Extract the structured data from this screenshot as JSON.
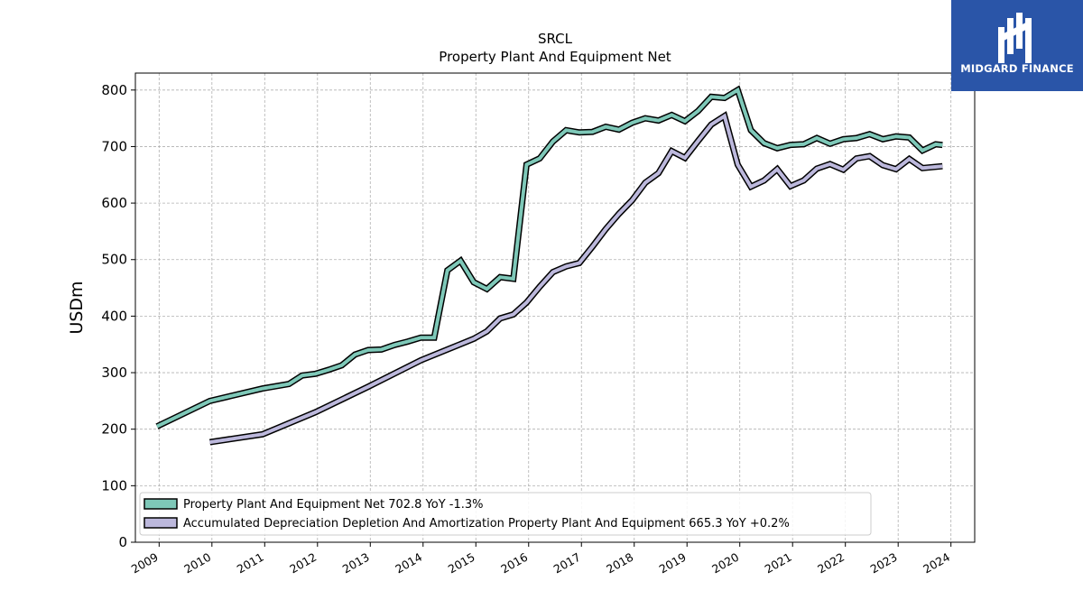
{
  "title": "SRCL",
  "subtitle": "Property Plant And Equipment Net",
  "logo": {
    "text": "MIDGARD FINANCE",
    "icon": "midgard-logo-icon"
  },
  "chart_data": {
    "type": "line",
    "ylabel": "USDm",
    "xlabel": "",
    "ylim": [
      0,
      830
    ],
    "xlim": [
      2008.55,
      2024.45
    ],
    "yticks": [
      0,
      100,
      200,
      300,
      400,
      500,
      600,
      700,
      800
    ],
    "xticks": [
      "2009",
      "2010",
      "2011",
      "2012",
      "2013",
      "2014",
      "2015",
      "2016",
      "2017",
      "2018",
      "2019",
      "2020",
      "2021",
      "2022",
      "2023",
      "2024"
    ],
    "grid": true,
    "legend_position": "lower-left",
    "series": [
      {
        "name": "Property Plant And Equipment Net",
        "legend_label": "Property Plant And Equipment Net  702.8 YoY -1.3%",
        "color": "#7ec8b8",
        "points": [
          [
            2008.96,
            205
          ],
          [
            2009.96,
            250
          ],
          [
            2010.96,
            272
          ],
          [
            2011.46,
            280
          ],
          [
            2011.71,
            295
          ],
          [
            2011.96,
            298
          ],
          [
            2012.21,
            305
          ],
          [
            2012.46,
            313
          ],
          [
            2012.71,
            332
          ],
          [
            2012.96,
            340
          ],
          [
            2013.21,
            341
          ],
          [
            2013.46,
            349
          ],
          [
            2013.71,
            355
          ],
          [
            2013.96,
            362
          ],
          [
            2014.21,
            362
          ],
          [
            2014.46,
            481
          ],
          [
            2014.71,
            498
          ],
          [
            2014.96,
            460
          ],
          [
            2015.21,
            448
          ],
          [
            2015.46,
            469
          ],
          [
            2015.71,
            466
          ],
          [
            2015.96,
            668
          ],
          [
            2016.21,
            679
          ],
          [
            2016.46,
            709
          ],
          [
            2016.71,
            729
          ],
          [
            2016.96,
            725
          ],
          [
            2017.21,
            726
          ],
          [
            2017.46,
            735
          ],
          [
            2017.71,
            730
          ],
          [
            2017.96,
            742
          ],
          [
            2018.21,
            750
          ],
          [
            2018.46,
            746
          ],
          [
            2018.71,
            756
          ],
          [
            2018.96,
            745
          ],
          [
            2019.21,
            763
          ],
          [
            2019.46,
            788
          ],
          [
            2019.71,
            786
          ],
          [
            2019.96,
            800
          ],
          [
            2020.21,
            729
          ],
          [
            2020.46,
            706
          ],
          [
            2020.71,
            697
          ],
          [
            2020.96,
            703
          ],
          [
            2021.21,
            704
          ],
          [
            2021.46,
            715
          ],
          [
            2021.71,
            705
          ],
          [
            2021.96,
            713
          ],
          [
            2022.21,
            715
          ],
          [
            2022.46,
            722
          ],
          [
            2022.71,
            713
          ],
          [
            2022.96,
            718
          ],
          [
            2023.21,
            716
          ],
          [
            2023.46,
            693
          ],
          [
            2023.71,
            704
          ],
          [
            2023.84,
            702.8
          ]
        ]
      },
      {
        "name": "Accumulated Depreciation Depletion And Amortization Property Plant And Equipment",
        "legend_label": "Accumulated Depreciation Depletion And Amortization Property Plant And Equipment  665.3 YoY +0.2%",
        "color": "#bcb8dc",
        "points": [
          [
            2009.96,
            177
          ],
          [
            2010.96,
            191
          ],
          [
            2011.96,
            230
          ],
          [
            2012.96,
            275
          ],
          [
            2013.96,
            322
          ],
          [
            2014.96,
            360
          ],
          [
            2015.21,
            373
          ],
          [
            2015.46,
            396
          ],
          [
            2015.71,
            403
          ],
          [
            2015.96,
            424
          ],
          [
            2016.21,
            452
          ],
          [
            2016.46,
            478
          ],
          [
            2016.71,
            488
          ],
          [
            2016.96,
            494
          ],
          [
            2017.21,
            523
          ],
          [
            2017.46,
            554
          ],
          [
            2017.71,
            581
          ],
          [
            2017.96,
            605
          ],
          [
            2018.21,
            636
          ],
          [
            2018.46,
            653
          ],
          [
            2018.71,
            692
          ],
          [
            2018.96,
            680
          ],
          [
            2019.21,
            710
          ],
          [
            2019.46,
            739
          ],
          [
            2019.71,
            754
          ],
          [
            2019.96,
            668
          ],
          [
            2020.21,
            629
          ],
          [
            2020.46,
            640
          ],
          [
            2020.71,
            660
          ],
          [
            2020.96,
            630
          ],
          [
            2021.21,
            640
          ],
          [
            2021.46,
            661
          ],
          [
            2021.71,
            669
          ],
          [
            2021.96,
            659
          ],
          [
            2022.21,
            679
          ],
          [
            2022.46,
            683
          ],
          [
            2022.71,
            667
          ],
          [
            2022.96,
            660
          ],
          [
            2023.21,
            678
          ],
          [
            2023.46,
            662
          ],
          [
            2023.84,
            665.3
          ]
        ]
      }
    ]
  }
}
